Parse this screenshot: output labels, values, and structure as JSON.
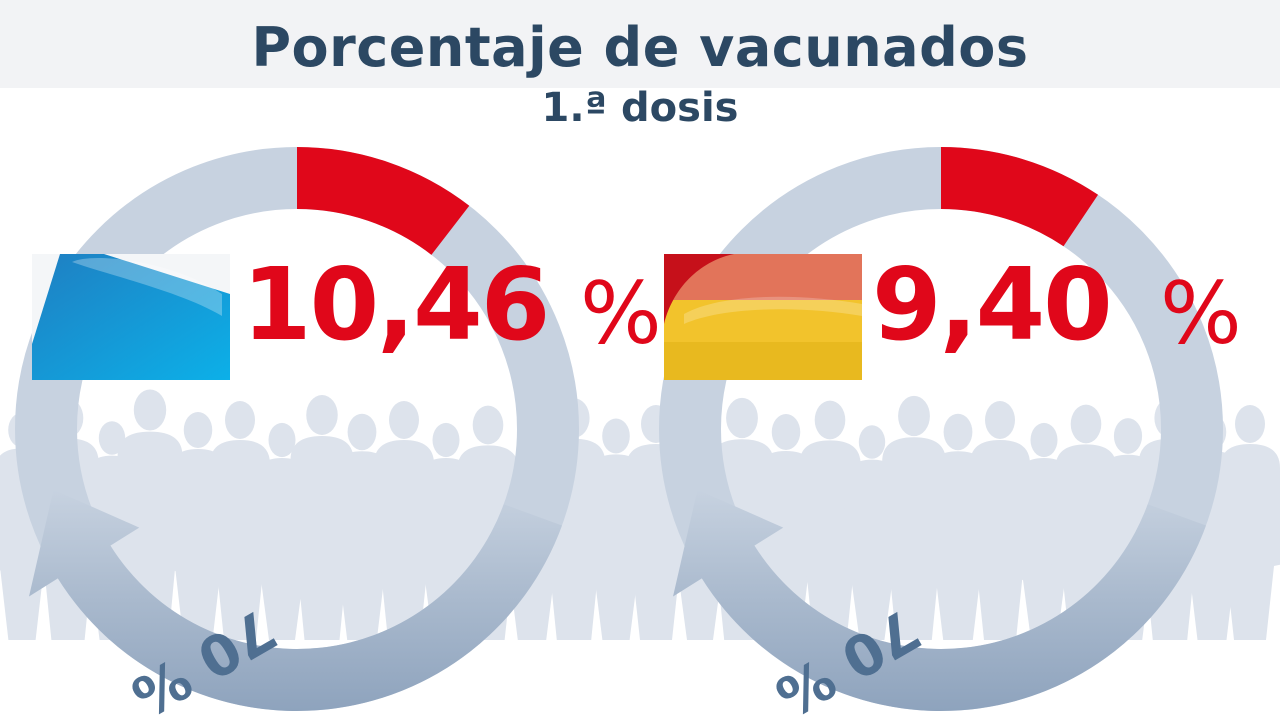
{
  "header": {
    "title": "Porcentaje de vacunados",
    "subtitle": "1.ª dosis"
  },
  "target_label": "70 %",
  "colors": {
    "title": "#2c4863",
    "accent_red": "#e0071a",
    "ring_track": "#c7d2e0",
    "ring_arrow": "#8ea3bd",
    "arrow_text": "#4f6f91",
    "crowd": "#dde3ec"
  },
  "chart_data": [
    {
      "type": "pie",
      "subtitle": "1.ª dosis",
      "value_label": "10,46",
      "unit": "%",
      "values": [
        10.46
      ],
      "target": 70,
      "flag": "galicia"
    },
    {
      "type": "pie",
      "subtitle": "1.ª dosis",
      "value_label": "9,40",
      "unit": "%",
      "values": [
        9.4
      ],
      "target": 70,
      "flag": "spain"
    }
  ]
}
